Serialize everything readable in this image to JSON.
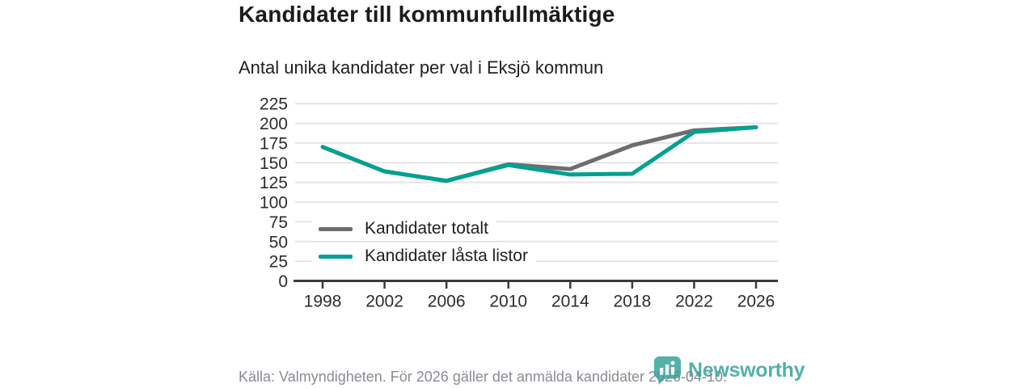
{
  "chart_data": {
    "type": "line",
    "title": "Kandidater till kommunfullmäktige",
    "subtitle": "Antal unika kandidater per val i Eksjö kommun",
    "source": "Källa: Valmyndigheten. För 2026 gäller det anmälda kandidater 2026-04-10.",
    "categories": [
      "1998",
      "2002",
      "2006",
      "2010",
      "2014",
      "2018",
      "2022",
      "2026"
    ],
    "series": [
      {
        "name": "Kandidater totalt",
        "color": "#6d6d71",
        "values": [
          170,
          139,
          127,
          148,
          142,
          172,
          191,
          195
        ]
      },
      {
        "name": "Kandidater låsta listor",
        "color": "#00a191",
        "values": [
          170,
          139,
          127,
          147,
          135,
          136,
          189,
          195
        ]
      }
    ],
    "xlabel": "",
    "ylabel": "",
    "ylim": [
      0,
      225
    ],
    "yticks": [
      0,
      25,
      50,
      75,
      100,
      125,
      150,
      175,
      200,
      225
    ],
    "grid": true,
    "legend_position": "inside-bottom-left"
  },
  "colors": {
    "grid": "#e4e4e6",
    "axis": "#3a3a3e",
    "tick_label": "#2d2d31",
    "footer_text": "#8b8b93",
    "logo_teal": "#2f9f97"
  },
  "logo": {
    "text": "Newsworthy",
    "icon": "newsworthy-speech-bubble-chart-icon"
  }
}
